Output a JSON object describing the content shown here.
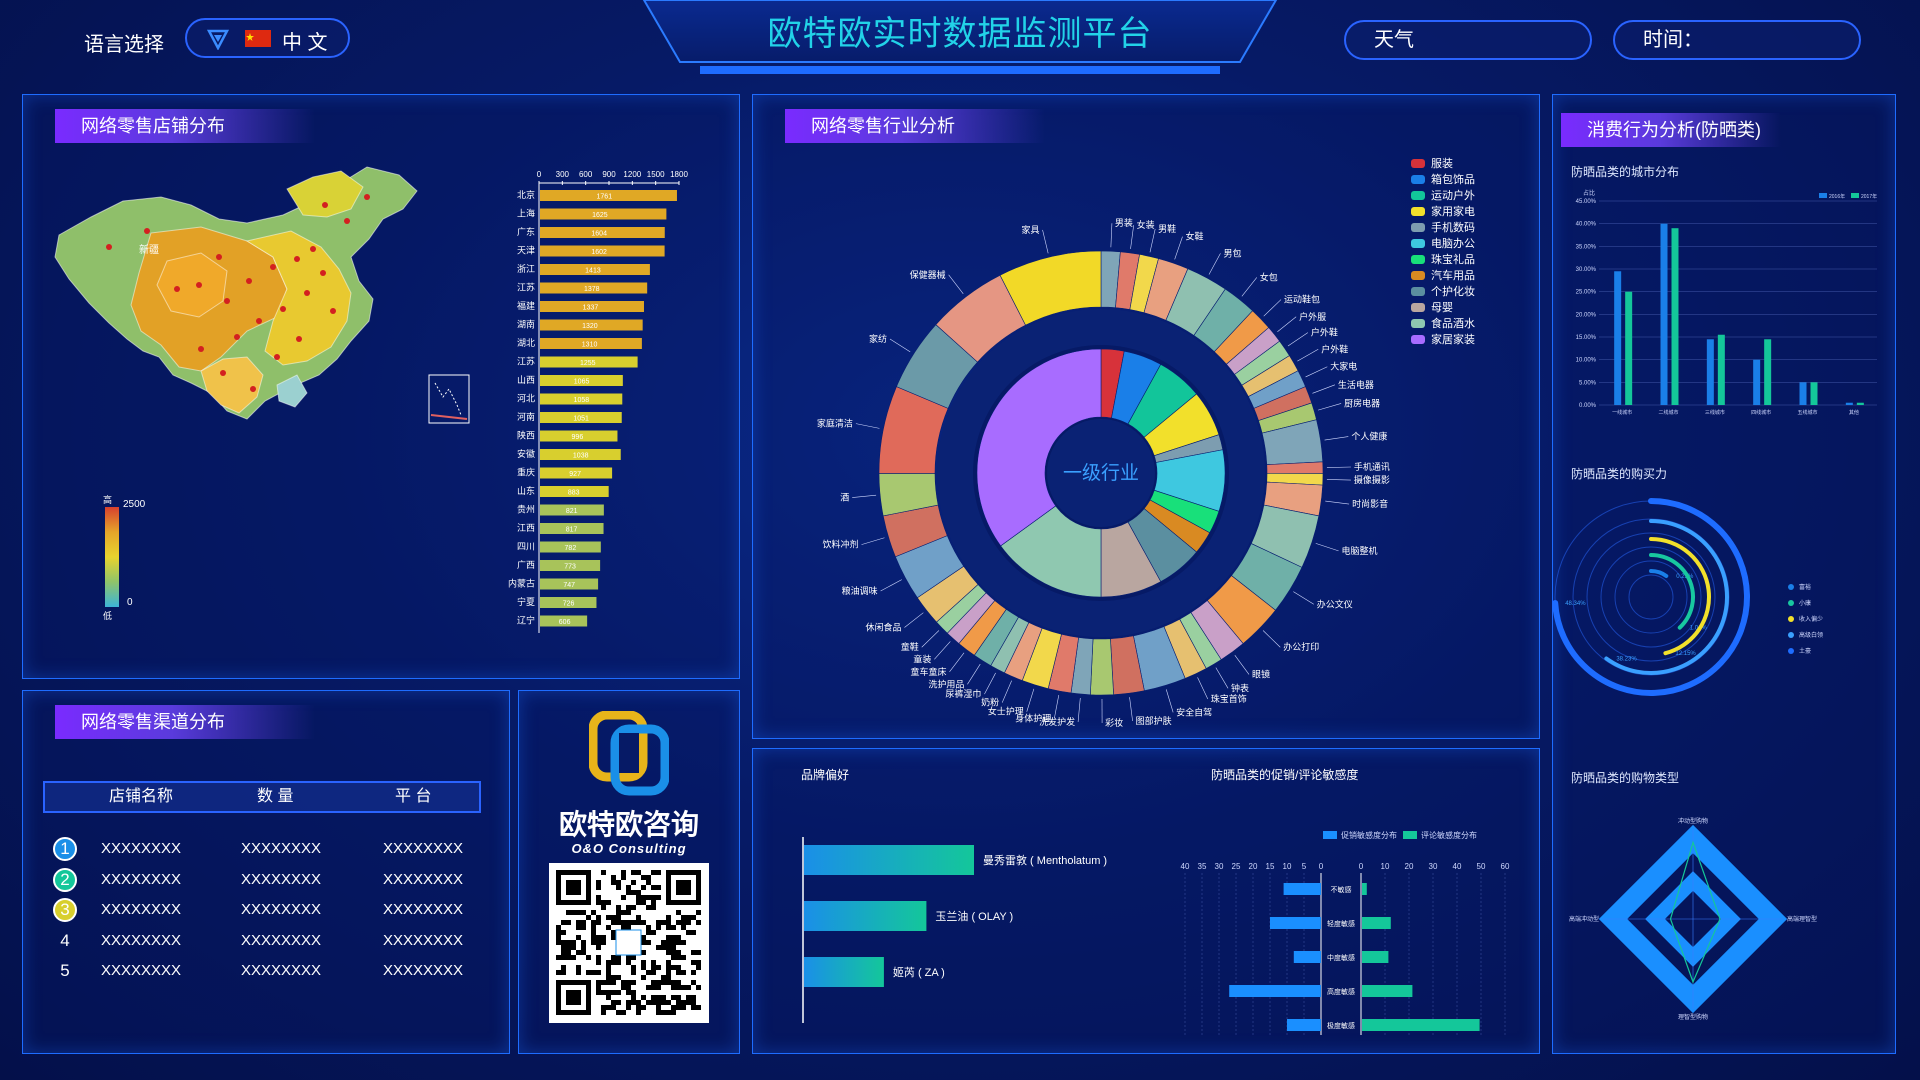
{
  "header": {
    "title": "欧特欧实时数据监测平台",
    "lang_label": "语言选择",
    "lang_value": "中 文",
    "weather_label": "天气",
    "time_label": "时间："
  },
  "panel_map": {
    "title": "网络零售店铺分布",
    "legend_max": "2500",
    "legend_min": "0",
    "legend_high": "高",
    "legend_low": "低",
    "map_label": "新疆"
  },
  "panel_industry": {
    "title": "网络零售行业分析",
    "center_label": "一级行业"
  },
  "panel_consume": {
    "title": "消费行为分析(防晒类)",
    "city_title": "防晒品类的城市分布",
    "power_title": "防晒品类的购买力",
    "shop_title": "防晒品类的购物类型"
  },
  "panel_channel": {
    "title": "网络零售渠道分布",
    "headers": [
      "店铺名称",
      "数 量",
      "平 台"
    ],
    "rows": [
      {
        "rank": "1",
        "name": "XXXXXXXX",
        "qty": "XXXXXXXX",
        "platform": "XXXXXXXX"
      },
      {
        "rank": "2",
        "name": "XXXXXXXX",
        "qty": "XXXXXXXX",
        "platform": "XXXXXXXX"
      },
      {
        "rank": "3",
        "name": "XXXXXXXX",
        "qty": "XXXXXXXX",
        "platform": "XXXXXXXX"
      },
      {
        "rank": "4",
        "name": "XXXXXXXX",
        "qty": "XXXXXXXX",
        "platform": "XXXXXXXX"
      },
      {
        "rank": "5",
        "name": "XXXXXXXX",
        "qty": "XXXXXXXX",
        "platform": "XXXXXXXX"
      }
    ]
  },
  "brand_card": {
    "name": "欧特欧咨询",
    "name_en": "O&O Consulting"
  },
  "colors": {
    "accent": "#1e6cff",
    "purple": "#7a2bff",
    "cyan": "#19c9e8",
    "green": "#14c79a",
    "gold": "#e8b41a"
  },
  "chart_data": [
    {
      "type": "bar",
      "orientation": "horizontal",
      "categories": [
        "北京",
        "上海",
        "广东",
        "天津",
        "浙江",
        "江苏",
        "福建",
        "湖南",
        "湖北",
        "江苏",
        "山西",
        "河北",
        "河南",
        "陕西",
        "安徽",
        "重庆",
        "山东",
        "贵州",
        "江西",
        "四川",
        "广西",
        "内蒙古",
        "宁夏",
        "辽宁"
      ],
      "values": [
        1761,
        1625,
        1604,
        1602,
        1413,
        1378,
        1337,
        1320,
        1310,
        1255,
        1065,
        1058,
        1051,
        996,
        1038,
        927,
        883,
        821,
        817,
        782,
        773,
        747,
        726,
        606
      ],
      "value_labels": [
        "1761",
        "1625",
        "1604",
        "1602",
        "1413",
        "1378",
        "1337",
        "1320",
        "1310",
        "1255",
        "1065",
        "1058",
        "1051",
        "996",
        "1038",
        "927",
        "883",
        "821",
        "817",
        "782",
        "773",
        "747",
        "726",
        "606"
      ],
      "xticks": [
        "0",
        "300",
        "600",
        "900",
        "1200",
        "1500",
        "1800"
      ],
      "xlim": [
        0,
        1800
      ]
    },
    {
      "type": "pie",
      "outer_ring_labels": [
        "男装",
        "女装",
        "男鞋",
        "女鞋",
        "男包",
        "女包",
        "运动鞋包",
        "户外服",
        "户外鞋",
        "户外鞋",
        "大家电",
        "生活电器",
        "厨房电器",
        "个人健康",
        "手机通讯",
        "摄像摄影",
        "时尚影音",
        "电脑整机",
        "办公文仪",
        "办公打印",
        "眼镜",
        "钟表",
        "珠宝首饰",
        "安全自驾",
        "图部护肤",
        "彩妆",
        "洗发护发",
        "身体护理",
        "女士护理",
        "奶粉",
        "尿裤湿巾",
        "洗护用品",
        "童车童床",
        "童装",
        "童鞋",
        "休闲食品",
        "粮油调味",
        "饮料冲剂",
        "酒",
        "家庭清洁",
        "家纺",
        "保健器械",
        "家具"
      ],
      "legend": [
        {
          "name": "服装",
          "color": "#d7323a"
        },
        {
          "name": "箱包饰品",
          "color": "#1a7fe8"
        },
        {
          "name": "运动户外",
          "color": "#12c59a"
        },
        {
          "name": "家用家电",
          "color": "#f2e02b"
        },
        {
          "name": "手机数码",
          "color": "#7d9db0"
        },
        {
          "name": "电脑办公",
          "color": "#3ec8e0"
        },
        {
          "name": "珠宝礼品",
          "color": "#18e07a"
        },
        {
          "name": "汽车用品",
          "color": "#d98a22"
        },
        {
          "name": "个护化妆",
          "color": "#5b8fa0"
        },
        {
          "name": "母婴",
          "color": "#b9a6a0"
        },
        {
          "name": "食品酒水",
          "color": "#8fc8b0"
        },
        {
          "name": "家居家装",
          "color": "#a86cff"
        }
      ],
      "inner_values": [
        3,
        5,
        6,
        6,
        2,
        8,
        3,
        3,
        6,
        8,
        15,
        35
      ]
    },
    {
      "type": "bar",
      "title": "防晒品类的城市分布",
      "categories": [
        "一线城市",
        "二线城市",
        "三线城市",
        "四线城市",
        "五线城市",
        "其他"
      ],
      "series": [
        {
          "name": "2016年",
          "values": [
            29.5,
            40,
            14.5,
            10,
            5,
            0.5
          ]
        },
        {
          "name": "2017年",
          "values": [
            25,
            39,
            15.5,
            14.5,
            5,
            0.5
          ]
        }
      ],
      "yticks": [
        "0.00%",
        "5.00%",
        "10.00%",
        "15.00%",
        "20.00%",
        "25.00%",
        "30.00%",
        "35.00%",
        "40.00%",
        "45.00%"
      ],
      "ylim": [
        0,
        45
      ],
      "ylabel": "占比"
    },
    {
      "type": "radial-bar",
      "title": "防晒品类的购买力",
      "series": [
        {
          "name": "富裕",
          "value_label": "0.25%",
          "color": "#1a7fe8"
        },
        {
          "name": "小康",
          "value_label": "1.04%",
          "color": "#18c7a0"
        },
        {
          "name": "收入偏少",
          "value_label": "12.15%",
          "color": "#f2e02b"
        },
        {
          "name": "高级白领",
          "value_label": "38.23%",
          "color": "#3aa0ff"
        },
        {
          "name": "土豪",
          "value_label": "48.34%",
          "color": "#1e6cff"
        }
      ],
      "fractions": [
        0.1,
        0.38,
        0.46,
        0.6,
        0.74
      ]
    },
    {
      "type": "bar",
      "orientation": "horizontal",
      "title": "品牌偏好",
      "categories": [
        "曼秀雷敦 ( Mentholatum )",
        "玉兰油 ( OLAY )",
        "姬芮 ( ZA )"
      ],
      "values": [
        100,
        72,
        47
      ]
    },
    {
      "type": "bar",
      "orientation": "horizontal-diverging",
      "title": "防晒品类的促销/评论敏感度",
      "categories": [
        "不敏感",
        "轻度敏感",
        "中度敏感",
        "高度敏感",
        "极度敏感"
      ],
      "series": [
        {
          "name": "促销敏感度分布",
          "values": [
            11,
            15,
            8,
            27,
            10
          ]
        },
        {
          "name": "评论敏感度分布",
          "values": [
            2,
            12,
            11,
            21,
            49
          ]
        }
      ],
      "left_ticks": [
        "40",
        "35",
        "30",
        "25",
        "20",
        "15",
        "10",
        "5",
        "0"
      ],
      "right_ticks": [
        "0",
        "10",
        "20",
        "30",
        "40",
        "50",
        "60"
      ]
    },
    {
      "type": "radar",
      "title": "防晒品类的购物类型",
      "axes": [
        "冲动型购物",
        "高端冲动型",
        "高端理智型",
        "理智型购物"
      ]
    }
  ]
}
